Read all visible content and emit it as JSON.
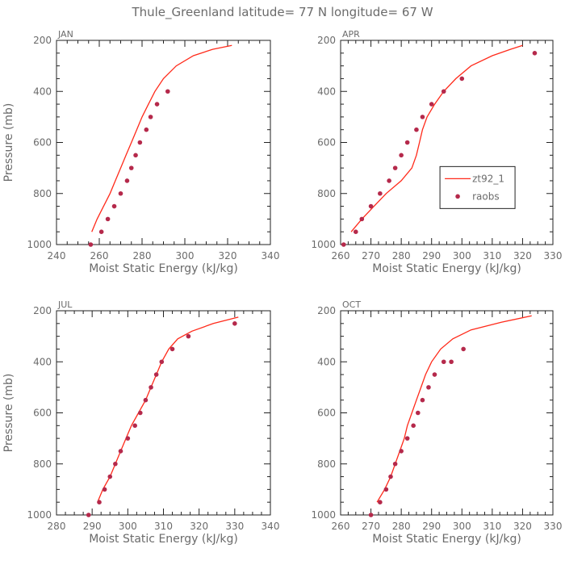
{
  "figure": {
    "title": "Thule_Greenland  latitude= 77 N longitude= 67 W"
  },
  "chart_data": [
    {
      "type": "line",
      "title": "JAN",
      "xlabel": "Moist Static Energy (kJ/kg)",
      "ylabel": "Pressure (mb)",
      "xlim": [
        240,
        340
      ],
      "xticks": [
        240,
        260,
        280,
        300,
        320,
        340
      ],
      "ylim": [
        1000,
        200
      ],
      "yticks": [
        200,
        400,
        600,
        800,
        1000
      ],
      "show_legend": false,
      "series": [
        {
          "name": "zt92_1",
          "kind": "line",
          "color": "#ff2a1a",
          "points": [
            [
              256.5,
              950
            ],
            [
              259,
              900
            ],
            [
              262,
              850
            ],
            [
              265,
              800
            ],
            [
              267.5,
              750
            ],
            [
              270,
              700
            ],
            [
              272.5,
              650
            ],
            [
              275,
              600
            ],
            [
              277.5,
              550
            ],
            [
              280,
              500
            ],
            [
              283,
              450
            ],
            [
              286,
              400
            ],
            [
              290,
              350
            ],
            [
              296,
              300
            ],
            [
              304,
              260
            ],
            [
              313,
              235
            ],
            [
              322,
              220
            ]
          ]
        },
        {
          "name": "raobs",
          "kind": "scatter",
          "color": "#b5294b",
          "points": [
            [
              256,
              1000
            ],
            [
              261,
              950
            ],
            [
              264,
              900
            ],
            [
              267,
              850
            ],
            [
              270,
              800
            ],
            [
              273,
              750
            ],
            [
              275,
              700
            ],
            [
              277,
              650
            ],
            [
              279,
              600
            ],
            [
              282,
              550
            ],
            [
              284,
              500
            ],
            [
              287,
              450
            ],
            [
              292,
              400
            ]
          ]
        }
      ]
    },
    {
      "type": "line",
      "title": "APR",
      "xlabel": "Moist Static Energy (kJ/kg)",
      "ylabel": "",
      "xlim": [
        260,
        330
      ],
      "xticks": [
        260,
        270,
        280,
        290,
        300,
        310,
        320,
        330
      ],
      "ylim": [
        1000,
        200
      ],
      "yticks": [
        200,
        400,
        600,
        800,
        1000
      ],
      "show_legend": true,
      "legend": [
        "zt92_1",
        "raobs"
      ],
      "series": [
        {
          "name": "zt92_1",
          "kind": "line",
          "color": "#ff2a1a",
          "points": [
            [
              263.5,
              950
            ],
            [
              267,
              900
            ],
            [
              271,
              850
            ],
            [
              275,
              800
            ],
            [
              280,
              750
            ],
            [
              283.5,
              700
            ],
            [
              285,
              650
            ],
            [
              286,
              600
            ],
            [
              287,
              550
            ],
            [
              288.5,
              500
            ],
            [
              291,
              450
            ],
            [
              294,
              400
            ],
            [
              298,
              350
            ],
            [
              303,
              300
            ],
            [
              310,
              260
            ],
            [
              316,
              235
            ],
            [
              320,
              220
            ]
          ]
        },
        {
          "name": "raobs",
          "kind": "scatter",
          "color": "#b5294b",
          "points": [
            [
              261,
              1000
            ],
            [
              265,
              950
            ],
            [
              267,
              900
            ],
            [
              270,
              850
            ],
            [
              273,
              800
            ],
            [
              276,
              750
            ],
            [
              278,
              700
            ],
            [
              280,
              650
            ],
            [
              282,
              600
            ],
            [
              285,
              550
            ],
            [
              287,
              500
            ],
            [
              290,
              450
            ],
            [
              294,
              400
            ],
            [
              300,
              350
            ],
            [
              324,
              250
            ]
          ]
        }
      ]
    },
    {
      "type": "line",
      "title": "JUL",
      "xlabel": "Moist Static Energy (kJ/kg)",
      "ylabel": "Pressure (mb)",
      "xlim": [
        280,
        340
      ],
      "xticks": [
        280,
        290,
        300,
        310,
        320,
        330,
        340
      ],
      "ylim": [
        1000,
        200
      ],
      "yticks": [
        200,
        400,
        600,
        800,
        1000
      ],
      "show_legend": false,
      "series": [
        {
          "name": "zt92_1",
          "kind": "line",
          "color": "#ff2a1a",
          "points": [
            [
              291.5,
              950
            ],
            [
              293,
              900
            ],
            [
              295,
              850
            ],
            [
              296.5,
              800
            ],
            [
              298,
              750
            ],
            [
              299.5,
              700
            ],
            [
              301,
              650
            ],
            [
              303,
              600
            ],
            [
              305,
              550
            ],
            [
              306.5,
              500
            ],
            [
              308,
              450
            ],
            [
              309.5,
              400
            ],
            [
              311.5,
              350
            ],
            [
              314,
              310
            ],
            [
              318,
              280
            ],
            [
              324,
              250
            ],
            [
              331,
              225
            ]
          ]
        },
        {
          "name": "raobs",
          "kind": "scatter",
          "color": "#b5294b",
          "points": [
            [
              289,
              1000
            ],
            [
              292,
              950
            ],
            [
              293.5,
              900
            ],
            [
              295,
              850
            ],
            [
              296.5,
              800
            ],
            [
              298,
              750
            ],
            [
              300,
              700
            ],
            [
              302,
              650
            ],
            [
              303.5,
              600
            ],
            [
              305,
              550
            ],
            [
              306.5,
              500
            ],
            [
              308,
              450
            ],
            [
              309.5,
              400
            ],
            [
              312.5,
              350
            ],
            [
              317,
              300
            ],
            [
              330,
              250
            ]
          ]
        }
      ]
    },
    {
      "type": "line",
      "title": "OCT",
      "xlabel": "Moist Static Energy (kJ/kg)",
      "ylabel": "",
      "xlim": [
        260,
        330
      ],
      "xticks": [
        260,
        270,
        280,
        290,
        300,
        310,
        320,
        330
      ],
      "ylim": [
        1000,
        200
      ],
      "yticks": [
        200,
        400,
        600,
        800,
        1000
      ],
      "show_legend": false,
      "series": [
        {
          "name": "zt92_1",
          "kind": "line",
          "color": "#ff2a1a",
          "points": [
            [
              272,
              950
            ],
            [
              274.5,
              900
            ],
            [
              276.5,
              850
            ],
            [
              278,
              800
            ],
            [
              279.5,
              750
            ],
            [
              281,
              700
            ],
            [
              282,
              650
            ],
            [
              283.5,
              600
            ],
            [
              285,
              550
            ],
            [
              286.5,
              500
            ],
            [
              288,
              450
            ],
            [
              290,
              400
            ],
            [
              293,
              350
            ],
            [
              297,
              310
            ],
            [
              303,
              275
            ],
            [
              313,
              245
            ],
            [
              323,
              220
            ]
          ]
        },
        {
          "name": "raobs",
          "kind": "scatter",
          "color": "#b5294b",
          "points": [
            [
              270,
              1000
            ],
            [
              273,
              950
            ],
            [
              275,
              900
            ],
            [
              276.5,
              850
            ],
            [
              278,
              800
            ],
            [
              280,
              750
            ],
            [
              282,
              700
            ],
            [
              284,
              650
            ],
            [
              285.5,
              600
            ],
            [
              287,
              550
            ],
            [
              289,
              500
            ],
            [
              291,
              450
            ],
            [
              294,
              400
            ],
            [
              296.5,
              400
            ],
            [
              300.5,
              350
            ]
          ]
        }
      ]
    }
  ]
}
